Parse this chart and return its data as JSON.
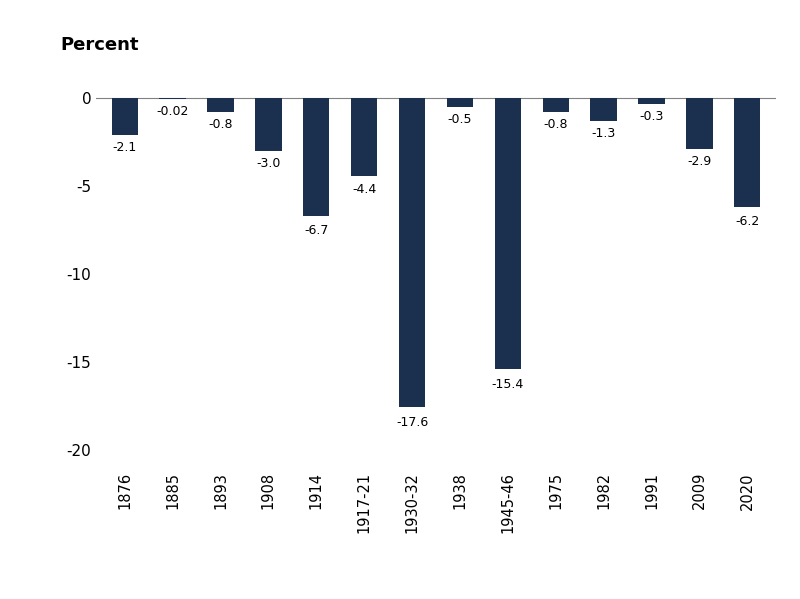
{
  "categories": [
    "1876",
    "1885",
    "1893",
    "1908",
    "1914",
    "1917-21",
    "1930-32",
    "1938",
    "1945-46",
    "1975",
    "1982",
    "1991",
    "2009",
    "2020"
  ],
  "values": [
    -2.1,
    -0.02,
    -0.8,
    -3.0,
    -6.7,
    -4.4,
    -17.6,
    -0.5,
    -15.4,
    -0.8,
    -1.3,
    -0.3,
    -2.9,
    -6.2
  ],
  "labels": [
    "-2.1",
    "-0.02",
    "-0.8",
    "-3.0",
    "-6.7",
    "-4.4",
    "-17.6",
    "-0.5",
    "-15.4",
    "-0.8",
    "-1.3",
    "-0.3",
    "-2.9",
    "-6.2"
  ],
  "bar_color": "#1b2f4e",
  "ylabel": "Percent",
  "ylim": [
    -21,
    1.5
  ],
  "yticks": [
    0,
    -5,
    -10,
    -15,
    -20
  ],
  "background_color": "#ffffff",
  "label_offsets": [
    0.35,
    0.35,
    0.35,
    0.35,
    0.45,
    0.45,
    0.5,
    0.35,
    0.5,
    0.35,
    0.35,
    0.35,
    0.35,
    0.45
  ],
  "bar_width": 0.55
}
